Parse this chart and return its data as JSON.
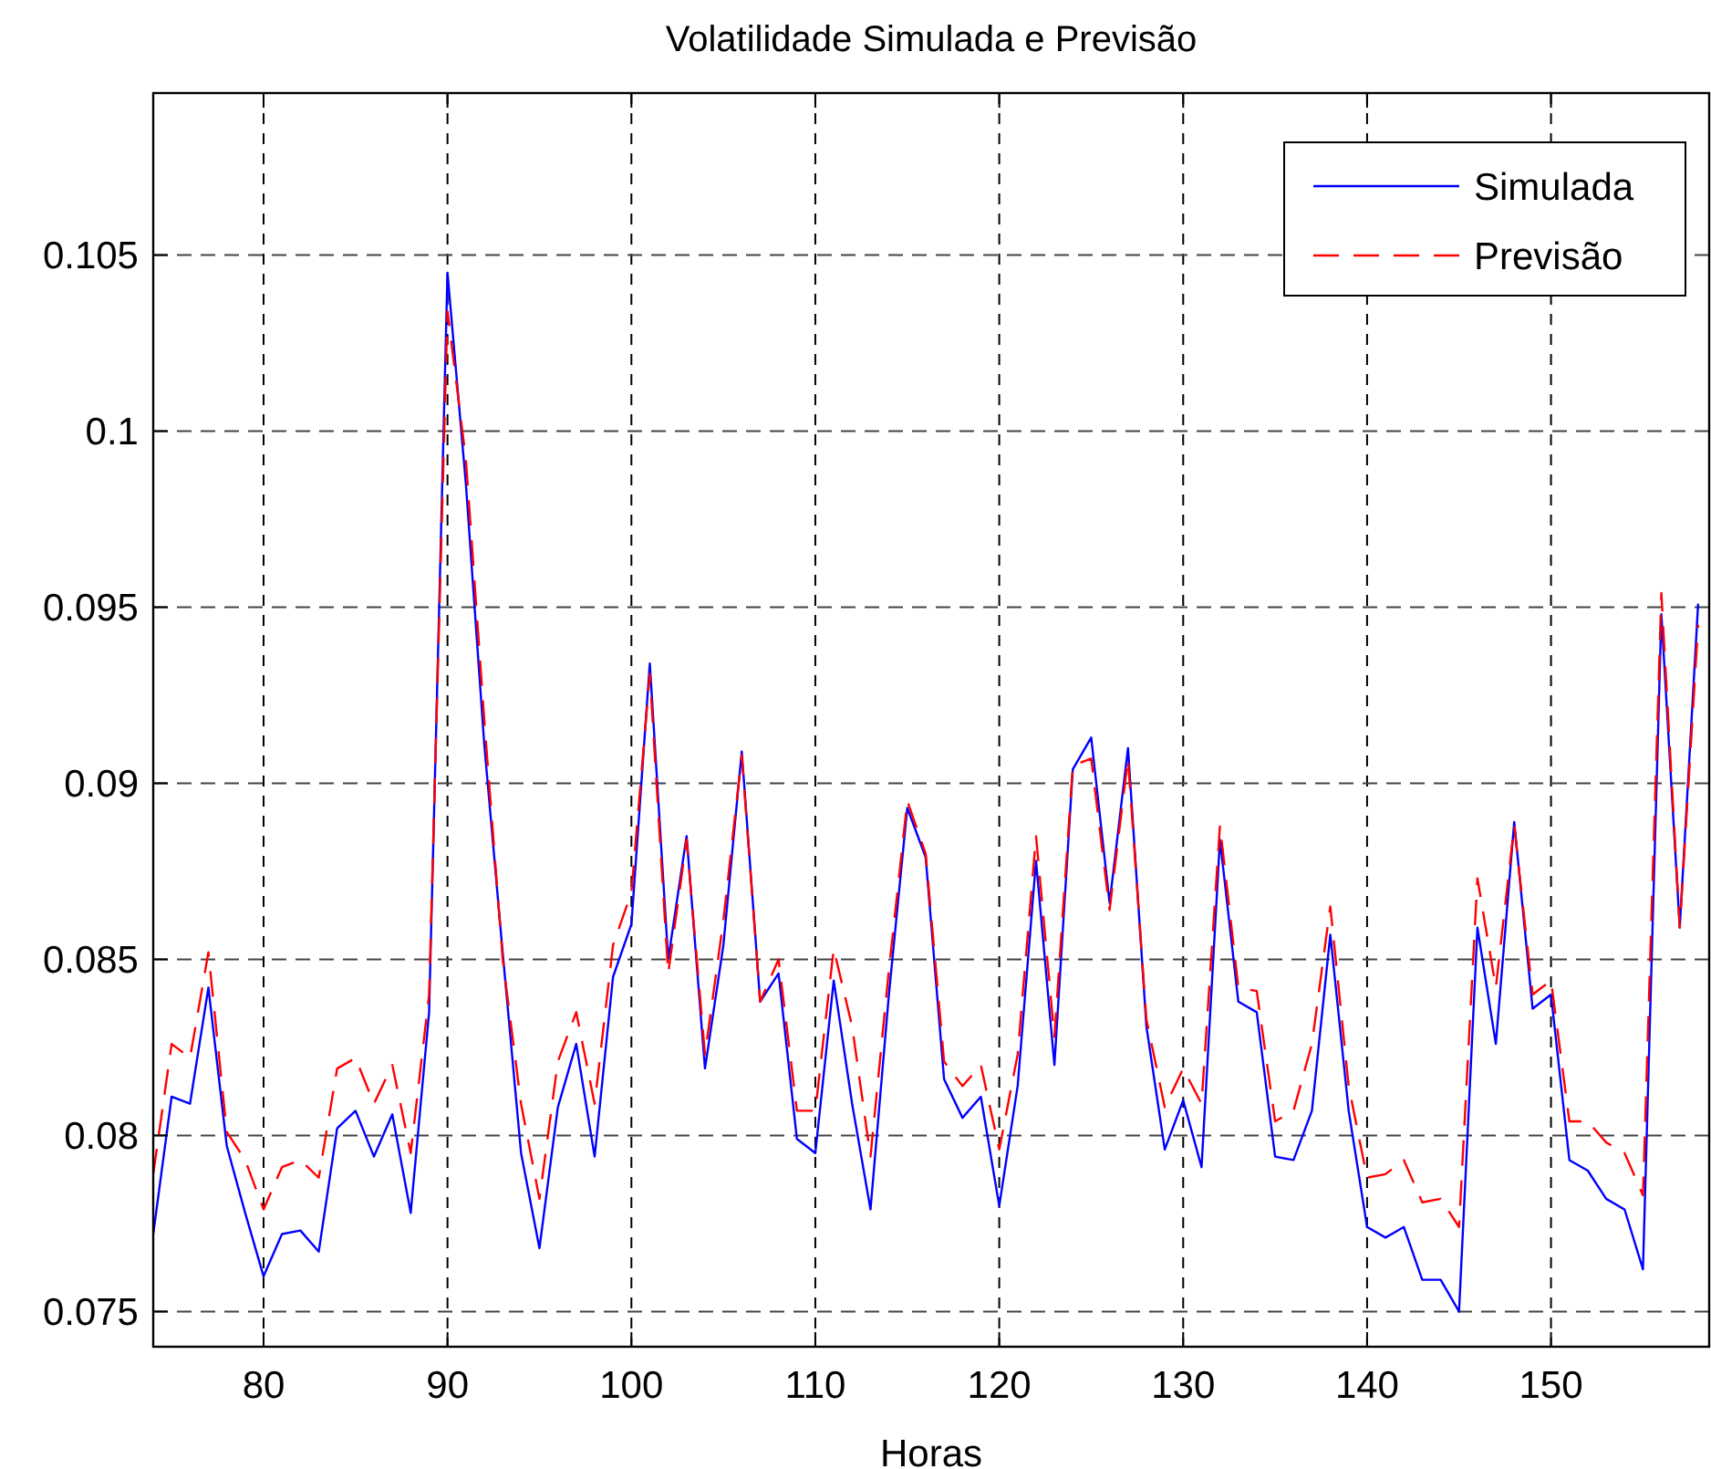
{
  "chart_data": {
    "type": "line",
    "title": "Volatilidade Simulada e Previsão",
    "xlabel": "Horas",
    "x": [
      74,
      75,
      76,
      77,
      78,
      79,
      80,
      81,
      82,
      83,
      84,
      85,
      86,
      87,
      88,
      89,
      90,
      91,
      92,
      93,
      94,
      95,
      96,
      97,
      98,
      99,
      100,
      101,
      102,
      103,
      104,
      105,
      106,
      107,
      108,
      109,
      110,
      111,
      112,
      113,
      114,
      115,
      116,
      117,
      118,
      119,
      120,
      121,
      122,
      123,
      124,
      125,
      126,
      127,
      128,
      129,
      130,
      131,
      132,
      133,
      134,
      135,
      136,
      137,
      138,
      139,
      140,
      141,
      142,
      143,
      144,
      145,
      146,
      147,
      148,
      149,
      150,
      151,
      152,
      153,
      154,
      155,
      156,
      157,
      158
    ],
    "series": [
      {
        "name": "Simulada",
        "color": "#0000ff",
        "line_style": "solid",
        "values": [
          0.0772,
          0.0811,
          0.0809,
          0.0842,
          0.0797,
          0.0778,
          0.076,
          0.0772,
          0.0773,
          0.0767,
          0.0802,
          0.0807,
          0.0794,
          0.0806,
          0.0778,
          0.0835,
          0.1045,
          0.0985,
          0.0911,
          0.0852,
          0.0795,
          0.0768,
          0.0808,
          0.0826,
          0.0794,
          0.0845,
          0.086,
          0.0934,
          0.085,
          0.0885,
          0.0819,
          0.0854,
          0.0909,
          0.0838,
          0.0846,
          0.0799,
          0.0795,
          0.0844,
          0.0809,
          0.0779,
          0.084,
          0.0893,
          0.0879,
          0.0816,
          0.0805,
          0.0811,
          0.078,
          0.0814,
          0.0878,
          0.082,
          0.0904,
          0.0913,
          0.0866,
          0.091,
          0.0831,
          0.0796,
          0.081,
          0.0791,
          0.0884,
          0.0838,
          0.0835,
          0.0794,
          0.0793,
          0.0807,
          0.0857,
          0.0807,
          0.0774,
          0.0771,
          0.0774,
          0.0759,
          0.0759,
          0.075,
          0.0859,
          0.0826,
          0.0889,
          0.0836,
          0.084,
          0.0793,
          0.079,
          0.0782,
          0.0779,
          0.0762,
          0.0948,
          0.0859,
          0.0951
        ]
      },
      {
        "name": "Previsão",
        "color": "#ff0000",
        "line_style": "dashed",
        "values": [
          0.0789,
          0.0826,
          0.0822,
          0.0852,
          0.0801,
          0.0793,
          0.0779,
          0.0791,
          0.0793,
          0.0788,
          0.0819,
          0.0822,
          0.0809,
          0.082,
          0.0795,
          0.084,
          0.1034,
          0.0992,
          0.0918,
          0.085,
          0.0809,
          0.0782,
          0.0821,
          0.0835,
          0.0809,
          0.0854,
          0.0869,
          0.0931,
          0.0846,
          0.0884,
          0.0823,
          0.0861,
          0.0908,
          0.0838,
          0.085,
          0.0807,
          0.0807,
          0.0853,
          0.0831,
          0.0794,
          0.0847,
          0.0895,
          0.088,
          0.0821,
          0.0814,
          0.082,
          0.0796,
          0.0823,
          0.0885,
          0.0828,
          0.0905,
          0.0907,
          0.0864,
          0.0907,
          0.0833,
          0.0808,
          0.0819,
          0.0809,
          0.0888,
          0.0842,
          0.0841,
          0.0804,
          0.0807,
          0.0826,
          0.0865,
          0.0814,
          0.0788,
          0.0789,
          0.0793,
          0.0781,
          0.0782,
          0.0774,
          0.0873,
          0.0842,
          0.0888,
          0.084,
          0.0844,
          0.0804,
          0.0804,
          0.0798,
          0.0795,
          0.0783,
          0.0954,
          0.0859,
          0.0945
        ]
      }
    ],
    "xlim": [
      74,
      158.6
    ],
    "ylim": [
      0.074,
      0.1096
    ],
    "xticks": [
      80,
      90,
      100,
      110,
      120,
      130,
      140,
      150
    ],
    "yticks": [
      0.075,
      0.08,
      0.085,
      0.09,
      0.095,
      0.1,
      0.105
    ],
    "grid": true,
    "legend": "top right"
  }
}
